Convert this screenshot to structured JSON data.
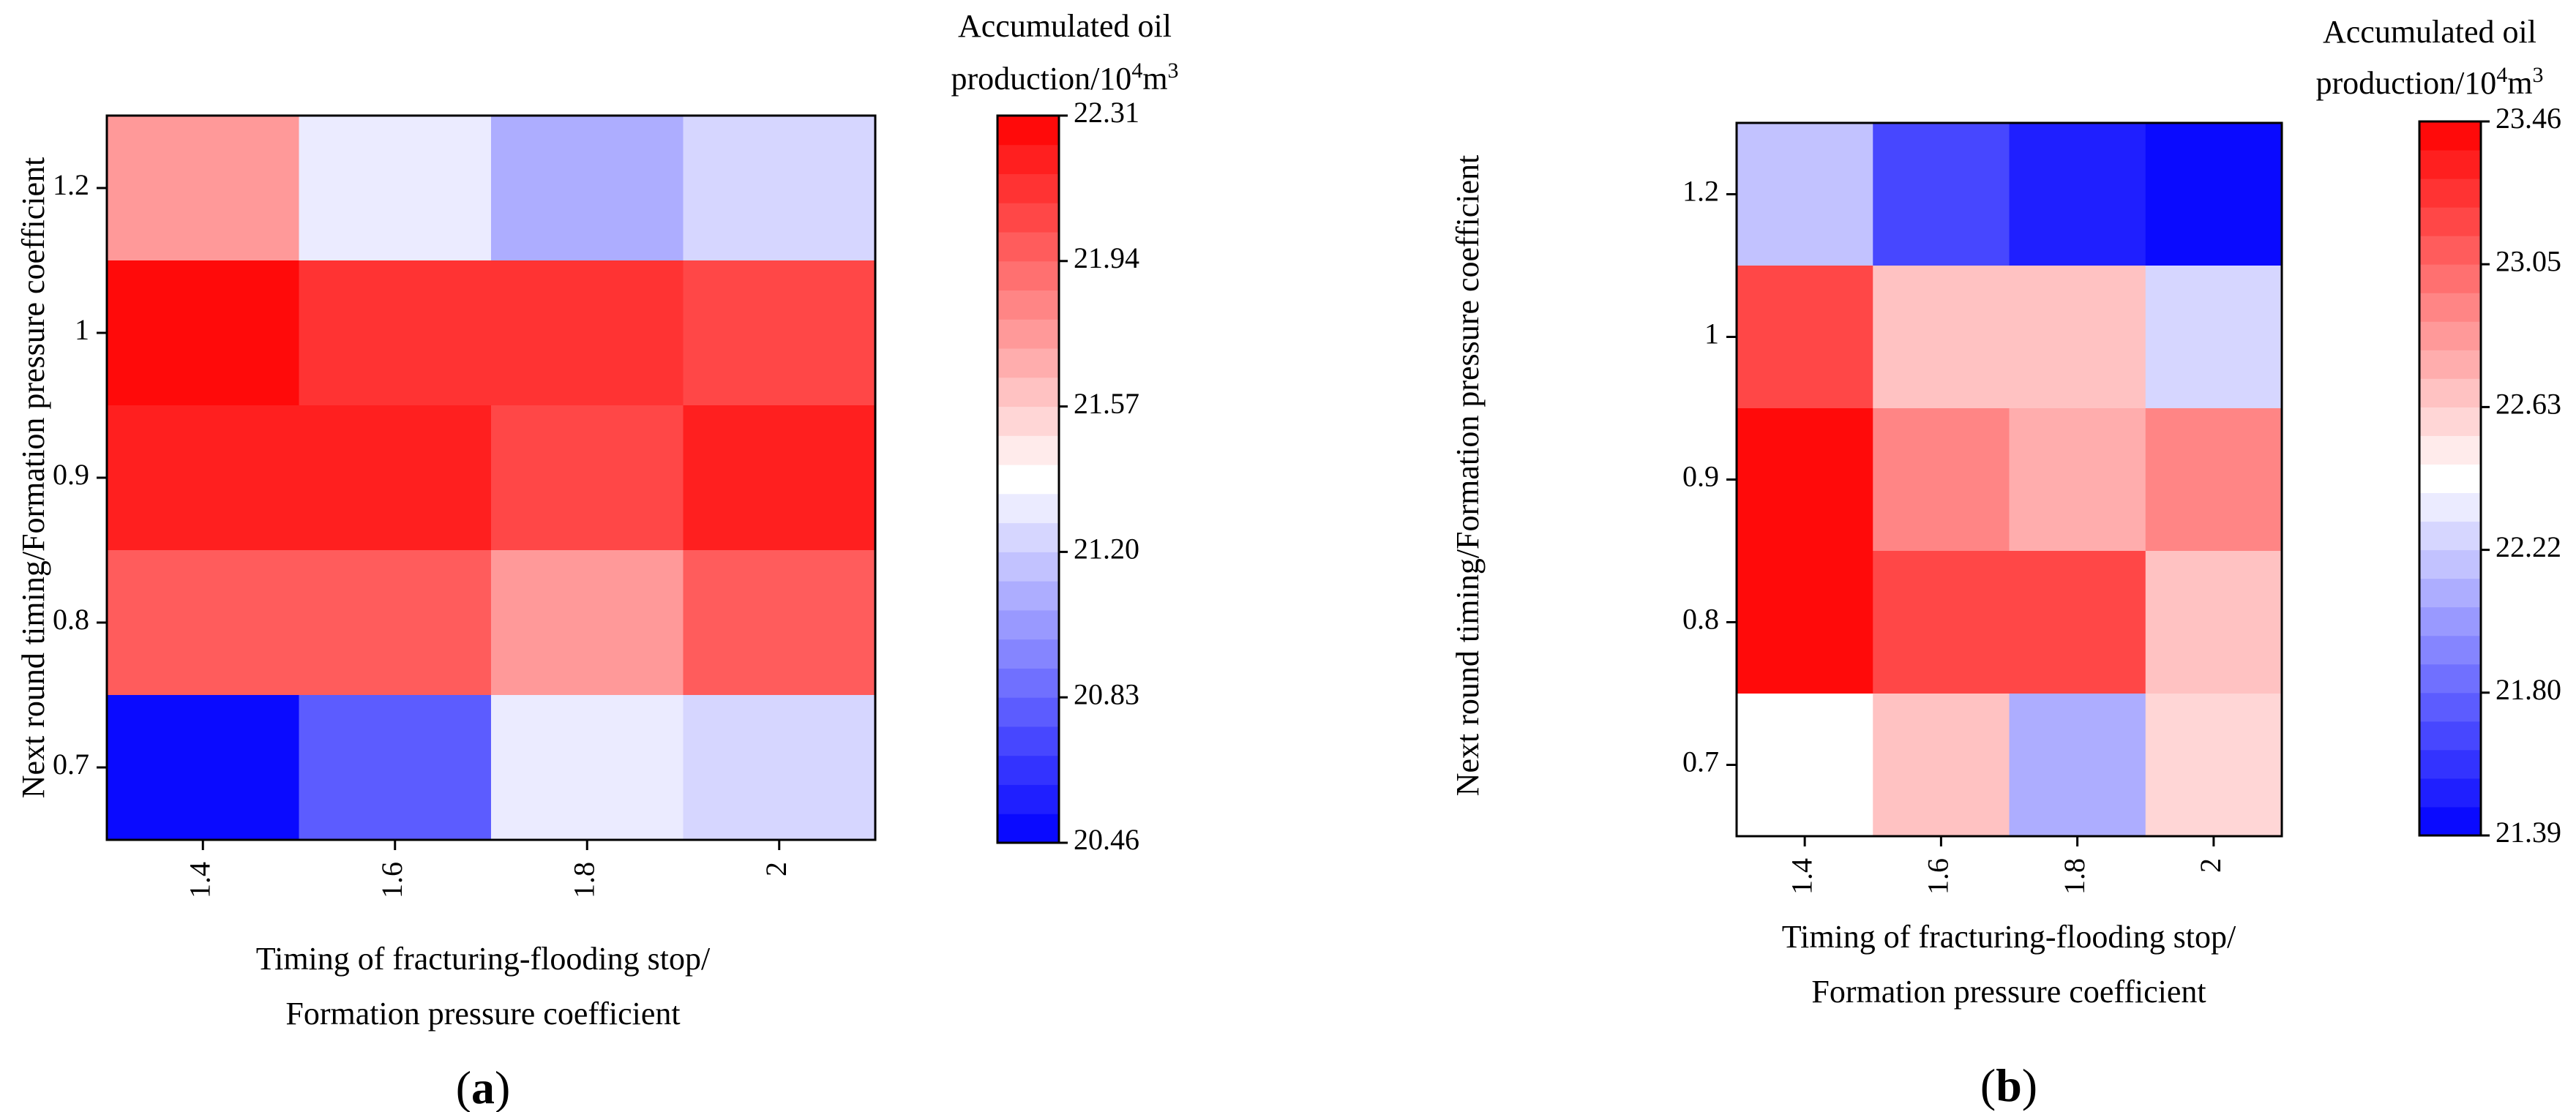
{
  "chart_data": [
    {
      "type": "heatmap",
      "panel_label": "a",
      "xlabel_line1": "Timing of fracturing-flooding stop/",
      "xlabel_line2": "Formation pressure coefficient",
      "ylabel": "Next round timing/Formation pressure coefficient",
      "x_categories": [
        "1.4",
        "1.6",
        "1.8",
        "2"
      ],
      "y_categories": [
        "1.2",
        "1",
        "0.9",
        "0.8",
        "0.7"
      ],
      "values": [
        [
          21.78,
          21.3,
          21.11,
          21.21
        ],
        [
          22.31,
          22.1,
          22.1,
          22.06
        ],
        [
          22.21,
          22.2,
          22.02,
          22.19
        ],
        [
          22.0,
          21.94,
          21.79,
          21.95
        ],
        [
          20.46,
          20.81,
          21.3,
          21.23
        ]
      ],
      "colorbar": {
        "title_line1": "Accumulated oil",
        "title_line2_prefix": "production/10",
        "title_sup1": "4",
        "title_mid": "m",
        "title_sup2": "3",
        "min": 20.46,
        "max": 22.31,
        "ticks": [
          "22.31",
          "21.94",
          "21.57",
          "21.20",
          "20.83",
          "20.46"
        ],
        "low_color": "#0000ff",
        "mid_color": "#ffffff",
        "high_color": "#ff0000",
        "steps": 25
      }
    },
    {
      "type": "heatmap",
      "panel_label": "b",
      "xlabel_line1": "Timing of fracturing-flooding stop/",
      "xlabel_line2": "Formation pressure coefficient",
      "ylabel": "Next round timing/Formation pressure coefficient",
      "x_categories": [
        "1.4",
        "1.6",
        "1.8",
        "2"
      ],
      "y_categories": [
        "1.2",
        "1",
        "0.9",
        "0.8",
        "0.7"
      ],
      "values": [
        [
          22.15,
          21.7,
          21.48,
          21.39
        ],
        [
          23.2,
          22.69,
          22.65,
          22.29
        ],
        [
          23.46,
          22.95,
          22.77,
          22.95
        ],
        [
          23.46,
          23.2,
          23.13,
          22.64
        ],
        [
          22.46,
          22.64,
          22.06,
          22.62
        ]
      ],
      "colorbar": {
        "title_line1": "Accumulated oil",
        "title_line2_prefix": "production/10",
        "title_sup1": "4",
        "title_mid": "m",
        "title_sup2": "3",
        "min": 21.39,
        "max": 23.46,
        "ticks": [
          "23.46",
          "23.05",
          "22.63",
          "22.22",
          "21.80",
          "21.39"
        ],
        "low_color": "#0000ff",
        "mid_color": "#ffffff",
        "high_color": "#ff0000",
        "steps": 25
      }
    }
  ]
}
